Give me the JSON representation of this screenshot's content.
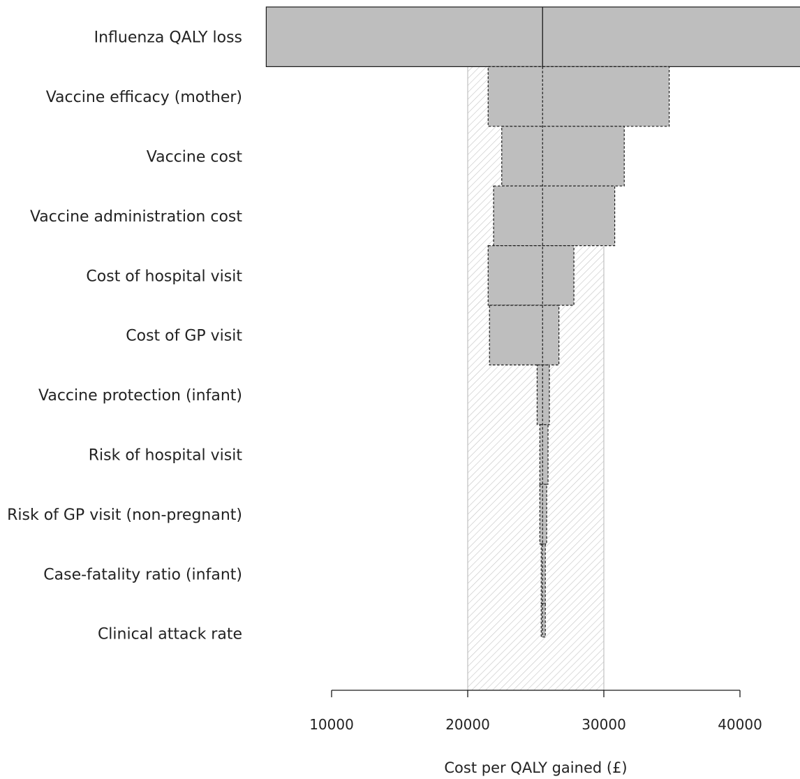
{
  "chart_data": {
    "type": "tornado",
    "title": "",
    "xlabel": "Cost per QALY gained (£)",
    "ylabel": "",
    "xlim": [
      10000,
      40000
    ],
    "xticks": [
      10000,
      20000,
      30000,
      40000
    ],
    "baseline": 25500,
    "threshold_band": [
      20000,
      30000
    ],
    "categories": [
      "Influenza QALY loss",
      "Vaccine efficacy (mother)",
      "Vaccine cost",
      "Vaccine administration cost",
      "Cost of hospital visit",
      "Cost of GP visit",
      "Vaccine protection (infant)",
      "Risk of hospital visit",
      "Risk of GP visit (non-pregnant)",
      "Case-fatality ratio (infant)",
      "Clinical attack rate"
    ],
    "series": [
      {
        "low": 5200,
        "high": 46000
      },
      {
        "low": 21500,
        "high": 34800
      },
      {
        "low": 22500,
        "high": 31500
      },
      {
        "low": 21900,
        "high": 30800
      },
      {
        "low": 21500,
        "high": 27800
      },
      {
        "low": 21600,
        "high": 26700
      },
      {
        "low": 25100,
        "high": 26000
      },
      {
        "low": 25300,
        "high": 25900
      },
      {
        "low": 25300,
        "high": 25800
      },
      {
        "low": 25400,
        "high": 25700
      },
      {
        "low": 25400,
        "high": 25700
      }
    ],
    "grid": false,
    "legend": "none"
  }
}
